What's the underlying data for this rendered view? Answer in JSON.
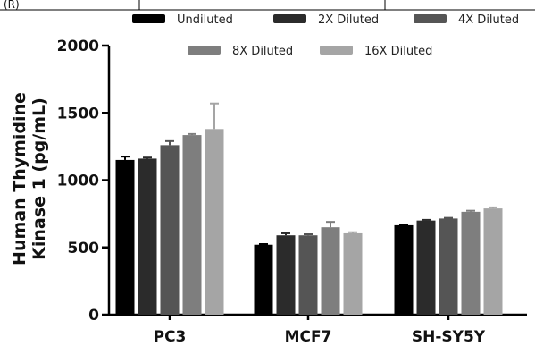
{
  "header_fragment": "(R)",
  "chart_data": {
    "type": "bar",
    "title": "",
    "xlabel": "",
    "ylabel_lines": [
      "Human Thymidine",
      "Kinase 1 (pg/mL)"
    ],
    "ylim": [
      0,
      2000
    ],
    "yticks": [
      0,
      500,
      1000,
      1500,
      2000
    ],
    "categories": [
      "PC3",
      "MCF7",
      "SH-SY5Y"
    ],
    "series": [
      {
        "name": "Undiluted",
        "color": "#000000",
        "values": [
          1150,
          520,
          665
        ],
        "errors": [
          25,
          5,
          5
        ]
      },
      {
        "name": "2X Diluted",
        "color": "#2b2b2b",
        "values": [
          1160,
          590,
          700
        ],
        "errors": [
          8,
          15,
          5
        ]
      },
      {
        "name": "4X Diluted",
        "color": "#555555",
        "values": [
          1260,
          590,
          715
        ],
        "errors": [
          30,
          8,
          5
        ]
      },
      {
        "name": "8X Diluted",
        "color": "#7e7e7e",
        "values": [
          1335,
          650,
          765
        ],
        "errors": [
          8,
          40,
          8
        ]
      },
      {
        "name": "16X Diluted",
        "color": "#a5a5a5",
        "values": [
          1380,
          605,
          790
        ],
        "errors": [
          190,
          8,
          8
        ]
      }
    ],
    "legend_placement": "top",
    "grid": false
  }
}
